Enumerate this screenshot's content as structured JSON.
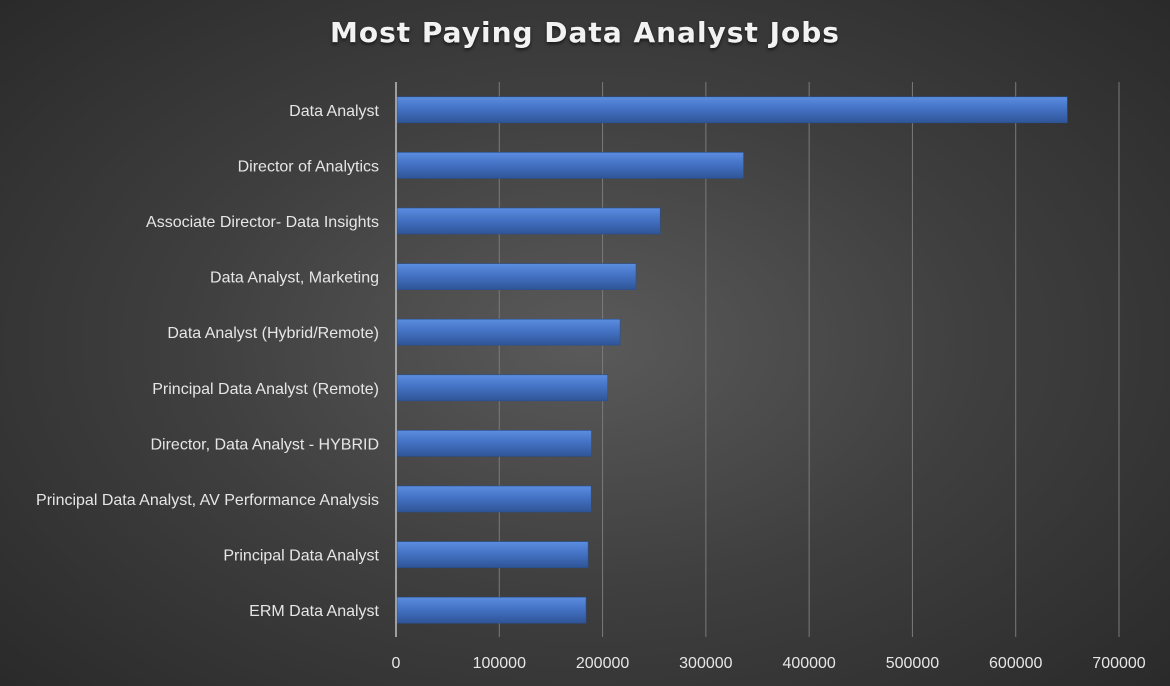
{
  "chart_data": {
    "type": "bar",
    "orientation": "horizontal",
    "title": "Most Paying Data Analyst Jobs",
    "categories": [
      "Data Analyst",
      "Director of Analytics",
      "Associate Director- Data Insights",
      "Data Analyst, Marketing",
      "Data Analyst (Hybrid/Remote)",
      "Principal Data Analyst (Remote)",
      "Director, Data Analyst - HYBRID",
      "Principal Data Analyst, AV Performance Analysis",
      "Principal Data Analyst",
      "ERM Data Analyst"
    ],
    "values": [
      650000,
      336500,
      255800,
      232400,
      217000,
      205000,
      189300,
      189000,
      186000,
      184000
    ],
    "xlabel": "",
    "ylabel": "",
    "xlim": [
      0,
      700000
    ],
    "xticks": [
      "0",
      "100000",
      "200000",
      "300000",
      "400000",
      "500000",
      "600000",
      "700000"
    ],
    "grid": "vertical",
    "legend": "none",
    "colors": {
      "bar_top": "#5b8de0",
      "bar_mid": "#4472c4",
      "bar_bottom": "#2f5597",
      "gridline": "#7a7a7a",
      "axis": "#bfbfbf",
      "text": "#e6e6e6"
    }
  }
}
